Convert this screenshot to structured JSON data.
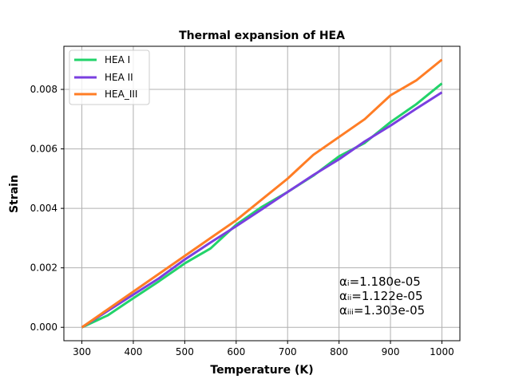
{
  "chart_data": {
    "type": "line",
    "title": "Thermal expansion of HEA",
    "xlabel": "Temperature (K)",
    "ylabel": "Strain",
    "xlim": [
      265,
      1035
    ],
    "ylim": [
      -0.00045,
      0.00945
    ],
    "xticks": [
      300,
      400,
      500,
      600,
      700,
      800,
      900,
      1000
    ],
    "xtick_labels": [
      "300",
      "400",
      "500",
      "600",
      "700",
      "800",
      "900",
      "1000"
    ],
    "yticks": [
      0.0,
      0.002,
      0.004,
      0.006,
      0.008
    ],
    "ytick_labels": [
      "0.000",
      "0.002",
      "0.004",
      "0.006",
      "0.008"
    ],
    "grid": true,
    "legend_position": "top-left",
    "x": [
      300,
      350,
      400,
      450,
      500,
      550,
      600,
      650,
      700,
      750,
      800,
      850,
      900,
      950,
      1000
    ],
    "series": [
      {
        "name": "HEA I",
        "color": "#22d36a",
        "values": [
          0.0,
          0.0004,
          0.00098,
          0.00155,
          0.00215,
          0.00265,
          0.00345,
          0.00405,
          0.00455,
          0.0051,
          0.00575,
          0.0062,
          0.0069,
          0.0075,
          0.0082
        ]
      },
      {
        "name": "HEA II",
        "color": "#7a3fe0",
        "values": [
          0.0,
          0.00055,
          0.0011,
          0.00165,
          0.00228,
          0.00285,
          0.0034,
          0.00397,
          0.00455,
          0.00512,
          0.00565,
          0.00625,
          0.00678,
          0.00735,
          0.0079
        ]
      },
      {
        "name": "HEA_III",
        "color": "#ff7d25",
        "values": [
          0.0,
          0.0006,
          0.0012,
          0.0018,
          0.0024,
          0.003,
          0.0036,
          0.0043,
          0.005,
          0.0058,
          0.0064,
          0.007,
          0.0078,
          0.0083,
          0.009
        ]
      }
    ],
    "annotations": [
      "αᵢ=1.180e-05",
      "αᵢᵢ=1.122e-05",
      "αᵢᵢᵢ=1.303e-05"
    ]
  }
}
